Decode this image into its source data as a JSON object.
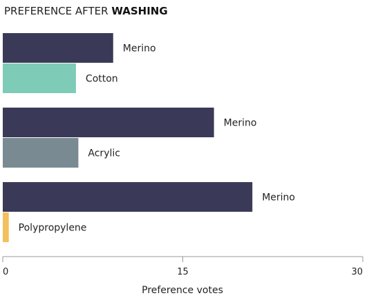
{
  "chart_data": {
    "type": "bar",
    "orientation": "horizontal",
    "title_prefix": "PREFERENCE AFTER ",
    "title_emphasis": "WASHING",
    "xlabel": "Preference votes",
    "xlim": [
      0,
      30
    ],
    "xticks": [
      "0",
      "15",
      "30"
    ],
    "grid": false,
    "groups": [
      {
        "bars": [
          {
            "label": "Merino",
            "value": 9.2,
            "color": "#3a3a58"
          },
          {
            "label": "Cotton",
            "value": 6.1,
            "color": "#7ecbb8"
          }
        ]
      },
      {
        "bars": [
          {
            "label": "Merino",
            "value": 17.6,
            "color": "#3a3a58"
          },
          {
            "label": "Acrylic",
            "value": 6.3,
            "color": "#7a8a93"
          }
        ]
      },
      {
        "bars": [
          {
            "label": "Merino",
            "value": 20.8,
            "color": "#3a3a58"
          },
          {
            "label": "Polypropylene",
            "value": 0.5,
            "color": "#f2c05c"
          }
        ]
      }
    ]
  }
}
